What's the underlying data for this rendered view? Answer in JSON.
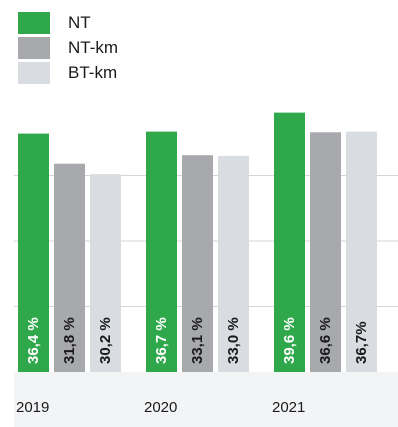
{
  "chart_data": {
    "type": "bar",
    "categories": [
      "2019",
      "2020",
      "2021"
    ],
    "series": [
      {
        "name": "NT",
        "color": "#2ea84a",
        "values": [
          36.4,
          36.7,
          39.6
        ],
        "labels": [
          "36,4 %",
          "36,7 %",
          "39,6 %"
        ]
      },
      {
        "name": "NT-km",
        "color": "#a7a9ac",
        "values": [
          31.8,
          33.1,
          36.6
        ],
        "labels": [
          "31,8 %",
          "33,1 %",
          "36,6 %"
        ]
      },
      {
        "name": "BT-km",
        "color": "#d9dce1",
        "values": [
          30.2,
          33.0,
          36.7
        ],
        "labels": [
          "30,2 %",
          "33,0 %",
          "36,7%"
        ]
      }
    ],
    "ylim": [
      0,
      40
    ],
    "grid": true,
    "legend": "top-left",
    "title": "",
    "xlabel": "",
    "ylabel": ""
  }
}
